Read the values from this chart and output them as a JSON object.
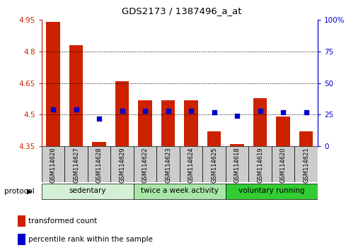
{
  "title": "GDS2173 / 1387496_a_at",
  "samples": [
    "GSM114626",
    "GSM114627",
    "GSM114628",
    "GSM114629",
    "GSM114622",
    "GSM114623",
    "GSM114624",
    "GSM114625",
    "GSM114618",
    "GSM114619",
    "GSM114620",
    "GSM114621"
  ],
  "red_values": [
    4.94,
    4.83,
    4.37,
    4.66,
    4.57,
    4.57,
    4.57,
    4.42,
    4.36,
    4.58,
    4.49,
    4.42
  ],
  "blue_pct": [
    29,
    29,
    22,
    28,
    28,
    28,
    28,
    27,
    24,
    28,
    27,
    27
  ],
  "baseline": 4.35,
  "ylim_left": [
    4.35,
    4.95
  ],
  "ylim_right": [
    0,
    100
  ],
  "yticks_left": [
    4.35,
    4.5,
    4.65,
    4.8,
    4.95
  ],
  "yticks_right": [
    0,
    25,
    50,
    75,
    100
  ],
  "ytick_labels_left": [
    "4.35",
    "4.5",
    "4.65",
    "4.8",
    "4.95"
  ],
  "ytick_labels_right": [
    "0",
    "25",
    "50",
    "75",
    "100%"
  ],
  "groups": [
    {
      "label": "sedentary",
      "indices": [
        0,
        1,
        2,
        3
      ],
      "color": "#d4f0d4"
    },
    {
      "label": "twice a week activity",
      "indices": [
        4,
        5,
        6,
        7
      ],
      "color": "#a8e6a8"
    },
    {
      "label": "voluntary running",
      "indices": [
        8,
        9,
        10,
        11
      ],
      "color": "#33cc33"
    }
  ],
  "protocol_label": "protocol",
  "bar_color": "#cc2200",
  "dot_color": "#0000cc",
  "grid_color": "#000000",
  "tick_color_left": "#cc2200",
  "tick_color_right": "#0000cc",
  "sample_box_color": "#cccccc",
  "bar_width": 0.6,
  "dot_size": 18
}
